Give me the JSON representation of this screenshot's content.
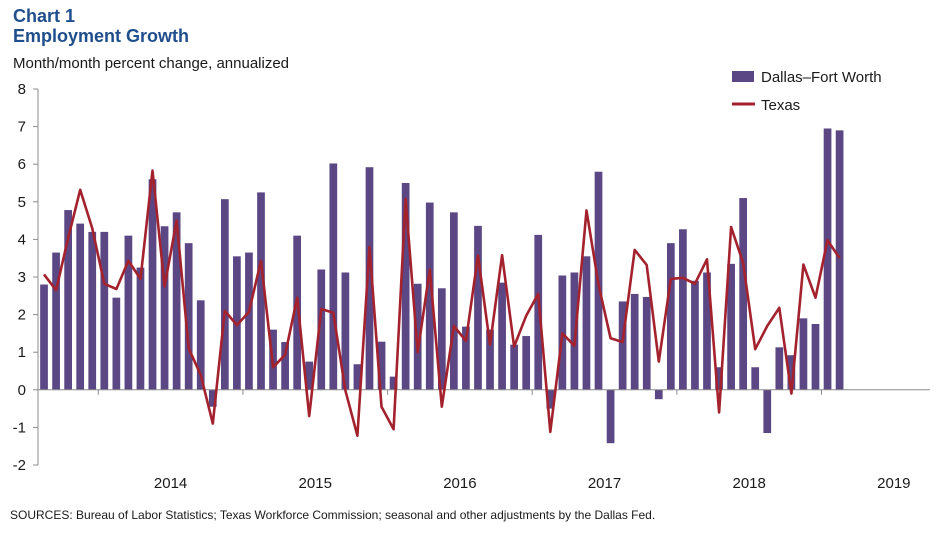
{
  "chart_data": {
    "type": "bar",
    "title_line1": "Chart 1",
    "title_line2": "Employment Growth",
    "ylabel": "Month/month  percent change, annualized",
    "ylim": [
      -2,
      8
    ],
    "yticks": [
      "-2",
      "-1",
      "0",
      "1",
      "2",
      "3",
      "4",
      "5",
      "6",
      "7",
      "8"
    ],
    "x_year_labels": [
      "2014",
      "2015",
      "2016",
      "2017",
      "2018",
      "2019"
    ],
    "x_range_months": [
      "2013-08",
      "2019-09"
    ],
    "source": "SOURCES: Bureau of Labor Statistics; Texas Workforce Commission; seasonal and other adjustments by the Dallas Fed.",
    "colors": {
      "bar": "#5b4784",
      "line": "#a3222d",
      "axis": "#8c8c8c",
      "title": "#1f4e8c"
    },
    "series": [
      {
        "name": "Dallas–Fort Worth",
        "kind": "bar",
        "values": [
          2.8,
          3.65,
          4.78,
          4.42,
          4.2,
          4.2,
          2.45,
          4.1,
          3.25,
          5.6,
          4.35,
          4.72,
          3.9,
          2.38,
          -0.45,
          5.07,
          3.55,
          3.65,
          5.25,
          1.6,
          1.27,
          4.1,
          0.75,
          3.2,
          6.02,
          3.12,
          0.68,
          5.92,
          1.28,
          0.35,
          5.5,
          2.82,
          4.98,
          2.7,
          4.72,
          1.68,
          4.36,
          1.6,
          2.85,
          1.2,
          1.43,
          4.12,
          -0.5,
          3.04,
          3.12,
          3.55,
          5.8,
          -1.42,
          2.35,
          2.55,
          2.47,
          -0.25,
          3.9,
          4.27,
          2.9,
          3.12,
          0.6,
          3.35,
          5.1,
          0.6,
          -1.15,
          1.13,
          0.92,
          1.9,
          1.75,
          6.95,
          6.9
        ]
      },
      {
        "name": "Texas",
        "kind": "line",
        "values": [
          3.07,
          2.65,
          4.03,
          5.32,
          4.3,
          2.82,
          2.68,
          3.43,
          2.95,
          5.83,
          2.75,
          4.5,
          1.1,
          0.4,
          -0.9,
          2.1,
          1.72,
          2.07,
          3.43,
          0.6,
          0.93,
          2.45,
          -0.7,
          2.15,
          2.05,
          -0.02,
          -1.22,
          3.8,
          -0.45,
          -1.05,
          5.08,
          1.0,
          3.2,
          -0.45,
          1.7,
          1.3,
          3.57,
          1.2,
          3.58,
          1.15,
          1.97,
          2.55,
          -1.12,
          1.5,
          1.17,
          4.77,
          2.8,
          1.37,
          1.27,
          3.72,
          3.32,
          0.75,
          2.95,
          2.98,
          2.82,
          3.47,
          -0.6,
          4.33,
          3.37,
          1.08,
          1.7,
          2.18,
          -0.1,
          3.33,
          2.45,
          3.98,
          3.5
        ]
      }
    ]
  }
}
